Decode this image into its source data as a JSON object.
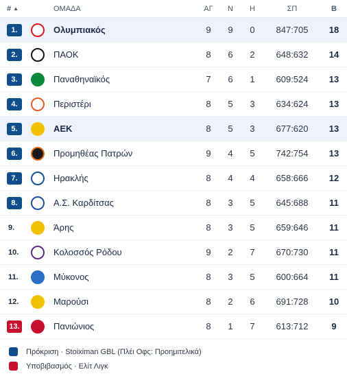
{
  "header": {
    "rank": "#",
    "team": "ΟΜΑΔΑ",
    "played": "ΑΓ",
    "wins": "Ν",
    "losses": "Η",
    "score": "ΣΠ",
    "points": "Β"
  },
  "rows": [
    {
      "rank": "1.",
      "team": "Ολυμπιακός",
      "played": "9",
      "wins": "9",
      "losses": "0",
      "score": "847:705",
      "points": "18"
    },
    {
      "rank": "2.",
      "team": "ΠΑΟΚ",
      "played": "8",
      "wins": "6",
      "losses": "2",
      "score": "648:632",
      "points": "14"
    },
    {
      "rank": "3.",
      "team": "Παναθηναϊκός",
      "played": "7",
      "wins": "6",
      "losses": "1",
      "score": "609:524",
      "points": "13"
    },
    {
      "rank": "4.",
      "team": "Περιστέρι",
      "played": "8",
      "wins": "5",
      "losses": "3",
      "score": "634:624",
      "points": "13"
    },
    {
      "rank": "5.",
      "team": "ΑΕΚ",
      "played": "8",
      "wins": "5",
      "losses": "3",
      "score": "677:620",
      "points": "13"
    },
    {
      "rank": "6.",
      "team": "Προμηθέας Πατρών",
      "played": "9",
      "wins": "4",
      "losses": "5",
      "score": "742:754",
      "points": "13"
    },
    {
      "rank": "7.",
      "team": "Ηρακλής",
      "played": "8",
      "wins": "4",
      "losses": "4",
      "score": "658:666",
      "points": "12"
    },
    {
      "rank": "8.",
      "team": "Α.Σ. Καρδίτσας",
      "played": "8",
      "wins": "3",
      "losses": "5",
      "score": "645:688",
      "points": "11"
    },
    {
      "rank": "9.",
      "team": "Άρης",
      "played": "8",
      "wins": "3",
      "losses": "5",
      "score": "659:646",
      "points": "11"
    },
    {
      "rank": "10.",
      "team": "Κολοσσός Ρόδου",
      "played": "9",
      "wins": "2",
      "losses": "7",
      "score": "670:730",
      "points": "11"
    },
    {
      "rank": "11.",
      "team": "Μύκονος",
      "played": "8",
      "wins": "3",
      "losses": "5",
      "score": "600:664",
      "points": "11"
    },
    {
      "rank": "12.",
      "team": "Μαρούσι",
      "played": "8",
      "wins": "2",
      "losses": "6",
      "score": "691:728",
      "points": "10"
    },
    {
      "rank": "13.",
      "team": "Πανιώνιος",
      "played": "8",
      "wins": "1",
      "losses": "7",
      "score": "613:712",
      "points": "9"
    }
  ],
  "legend": [
    {
      "label": "Πρόκριση · Stoiximan GBL (Πλέι Οφς: Προημιτελικά)",
      "color": "#0f4e8a"
    },
    {
      "label": "Υποβιβασμός · Ελίτ Λιγκ",
      "color": "#c8102e"
    }
  ],
  "colors": {
    "promotion": "#0f4e8a",
    "relegation": "#c8102e",
    "highlight": "#eef3fb"
  },
  "logos": [
    {
      "icon": "olympiacos-logo-icon",
      "color": "#d71920",
      "bg": "#ffffff"
    },
    {
      "icon": "paok-logo-icon",
      "color": "#111111",
      "bg": "#ffffff"
    },
    {
      "icon": "panathinaikos-logo-icon",
      "color": "#0b8a3b",
      "bg": "#0b8a3b"
    },
    {
      "icon": "peristeri-logo-icon",
      "color": "#e05a2b",
      "bg": "#ffffff"
    },
    {
      "icon": "aek-logo-icon",
      "color": "#f2c200",
      "bg": "#f2c200"
    },
    {
      "icon": "promitheas-logo-icon",
      "color": "#e06b1b",
      "bg": "#1a1a1a"
    },
    {
      "icon": "iraklis-logo-icon",
      "color": "#1b4f9c",
      "bg": "#ffffff"
    },
    {
      "icon": "karditsa-logo-icon",
      "color": "#1b4f9c",
      "bg": "#ffffff"
    },
    {
      "icon": "aris-logo-icon",
      "color": "#f2c200",
      "bg": "#f2c200"
    },
    {
      "icon": "kolossos-logo-icon",
      "color": "#5b2c83",
      "bg": "#ffffff"
    },
    {
      "icon": "mykonos-logo-icon",
      "color": "#2a6fc4",
      "bg": "#2a6fc4"
    },
    {
      "icon": "marousi-logo-icon",
      "color": "#f2c200",
      "bg": "#f2c200"
    },
    {
      "icon": "panionios-logo-icon",
      "color": "#c8102e",
      "bg": "#c8102e"
    }
  ]
}
